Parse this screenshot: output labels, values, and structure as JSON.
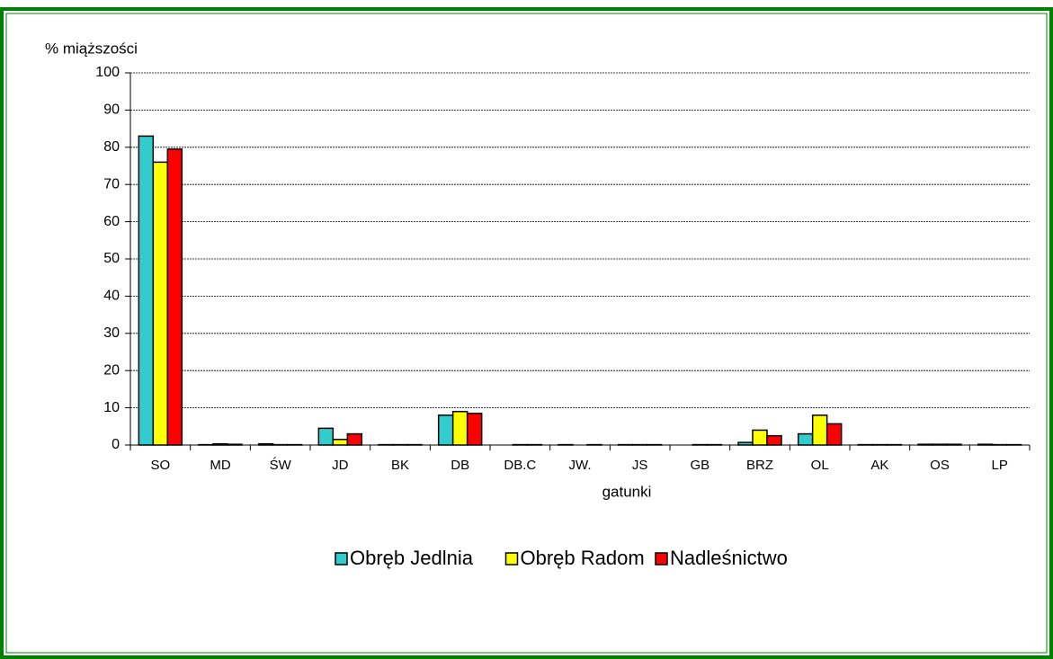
{
  "chart_data": {
    "type": "bar",
    "y_label": "% miąższości",
    "x_label": "gatunki",
    "categories": [
      "SO",
      "MD",
      "ŚW",
      "JD",
      "BK",
      "DB",
      "DB.C",
      "JW.",
      "JS",
      "GB",
      "BRZ",
      "OL",
      "AK",
      "OS",
      "LP"
    ],
    "series": [
      {
        "name": "Obręb Jedlnia",
        "color": "#33cccc",
        "values": [
          83,
          0.1,
          0.3,
          4.5,
          0.1,
          8,
          0,
          0.1,
          0.1,
          0,
          0.7,
          3,
          0.1,
          0.2,
          0.2
        ]
      },
      {
        "name": "Obręb Radom",
        "color": "#ffff00",
        "values": [
          76,
          0.3,
          0.1,
          1.5,
          0.1,
          9,
          0.1,
          0,
          0.1,
          0.1,
          4,
          8,
          0.1,
          0.2,
          0.1
        ]
      },
      {
        "name": "Nadleśnictwo",
        "color": "#ff0000",
        "values": [
          79.5,
          0.2,
          0.1,
          3,
          0.1,
          8.5,
          0.1,
          0.1,
          0.1,
          0.1,
          2.5,
          5.7,
          0.1,
          0.2,
          0.1
        ]
      }
    ],
    "ylim": [
      0,
      100
    ],
    "yticks": [
      0,
      10,
      20,
      30,
      40,
      50,
      60,
      70,
      80,
      90,
      100
    ],
    "grid": true,
    "legend": "bottom"
  }
}
